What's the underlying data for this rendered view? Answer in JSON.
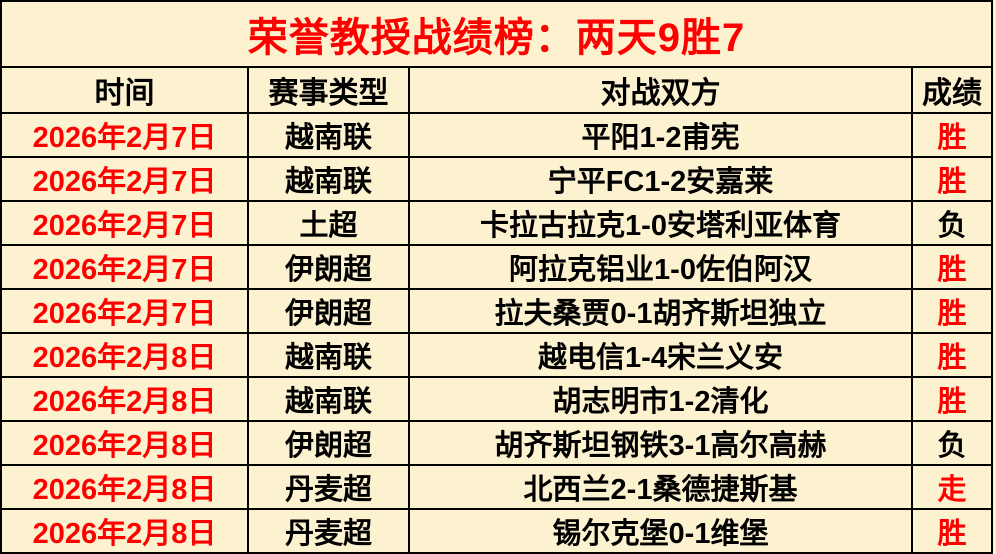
{
  "colors": {
    "background": "#fdf2cf",
    "accent_red": "#fe0000",
    "text_black": "#000000",
    "border_black": "#000000"
  },
  "title": "荣誉教授战绩榜：两天9胜7",
  "headers": {
    "time": "时间",
    "league": "赛事类型",
    "match": "对战双方",
    "result": "成绩"
  },
  "rows": [
    {
      "date": "2026年2月7日",
      "date_color": "#fe0000",
      "league": "越南联",
      "match": "平阳1-2甫宪",
      "result": "胜",
      "result_color": "#fe0000"
    },
    {
      "date": "2026年2月7日",
      "date_color": "#fe0000",
      "league": "越南联",
      "match": "宁平FC1-2安嘉莱",
      "result": "胜",
      "result_color": "#fe0000"
    },
    {
      "date": "2026年2月7日",
      "date_color": "#fe0000",
      "league": "土超",
      "match": "卡拉古拉克1-0安塔利亚体育",
      "result": "负",
      "result_color": "#000000"
    },
    {
      "date": "2026年2月7日",
      "date_color": "#fe0000",
      "league": "伊朗超",
      "match": "阿拉克铝业1-0佐伯阿汉",
      "result": "胜",
      "result_color": "#fe0000"
    },
    {
      "date": "2026年2月7日",
      "date_color": "#fe0000",
      "league": "伊朗超",
      "match": "拉夫桑贾0-1胡齐斯坦独立",
      "result": "胜",
      "result_color": "#fe0000"
    },
    {
      "date": "2026年2月8日",
      "date_color": "#fe0000",
      "league": "越南联",
      "match": "越电信1-4宋兰义安",
      "result": "胜",
      "result_color": "#fe0000"
    },
    {
      "date": "2026年2月8日",
      "date_color": "#fe0000",
      "league": "越南联",
      "match": "胡志明市1-2清化",
      "result": "胜",
      "result_color": "#fe0000"
    },
    {
      "date": "2026年2月8日",
      "date_color": "#fe0000",
      "league": "伊朗超",
      "match": "胡齐斯坦钢铁3-1高尔高赫",
      "result": "负",
      "result_color": "#000000"
    },
    {
      "date": "2026年2月8日",
      "date_color": "#fe0000",
      "league": "丹麦超",
      "match": "北西兰2-1桑德捷斯基",
      "result": "走",
      "result_color": "#fe0000"
    },
    {
      "date": "2026年2月8日",
      "date_color": "#fe0000",
      "league": "丹麦超",
      "match": "锡尔克堡0-1维堡",
      "result": "胜",
      "result_color": "#fe0000"
    }
  ]
}
